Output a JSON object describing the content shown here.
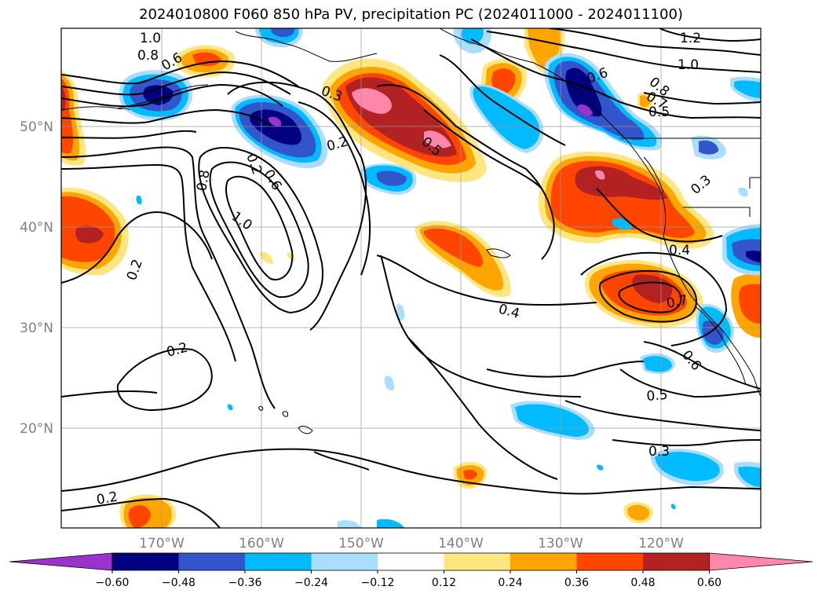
{
  "title": "2024010800 F060 850 hPa PV, precipitation PC (2024011000 - 2024011100)",
  "map": {
    "lat_labels": [
      "50°N",
      "40°N",
      "30°N",
      "20°N"
    ],
    "lon_labels": [
      "170°W",
      "160°W",
      "150°W",
      "140°W",
      "130°W",
      "120°W"
    ]
  },
  "contour_labels": [
    "1.0",
    "0.8",
    "0.6",
    "1.2",
    "1.0",
    "0.6",
    "0.8",
    "0.7",
    "0.5",
    "0.3",
    "0.5",
    "0.2",
    "0.8",
    "0.6",
    "1.0",
    "0.2",
    "0.3",
    "0.4",
    "0.7",
    "0.4",
    "0.6",
    "0.2",
    "0.5",
    "0.3",
    "0.2",
    "0.2"
  ],
  "colorbar": {
    "ticks": [
      "−0.60",
      "−0.48",
      "−0.36",
      "−0.24",
      "−0.12",
      "0.12",
      "0.24",
      "0.36",
      "0.48",
      "0.60"
    ],
    "colors": [
      "#9933cc",
      "#000080",
      "#3355cc",
      "#00bbff",
      "#aaddff",
      "#ffffff",
      "#ffe680",
      "#ffa500",
      "#ff4500",
      "#b22222",
      "#ff88aa"
    ],
    "extend": "both"
  },
  "colors": {
    "neg_deep": "#000080",
    "neg_mid": "#3355cc",
    "neg_light": "#00bbff",
    "neg_pale": "#aaddff",
    "pos_pale": "#ffe680",
    "pos_orange": "#ffa500",
    "pos_red": "#ff4500",
    "pos_dark": "#b22222",
    "pos_pink": "#ff88aa"
  }
}
